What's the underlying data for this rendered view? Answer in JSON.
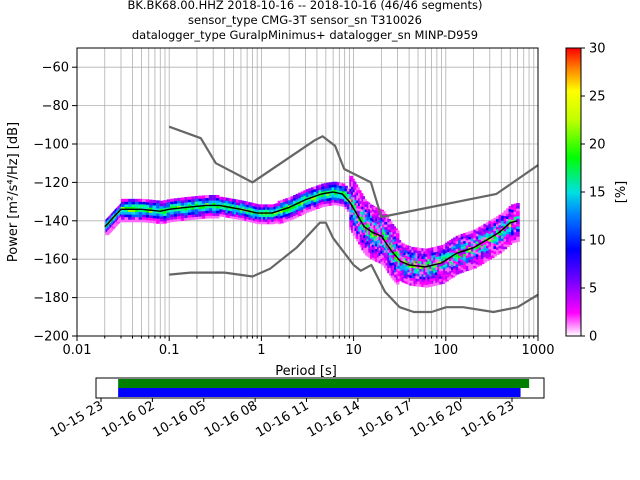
{
  "figure": {
    "title_lines": [
      "BK.BK68.00.HHZ   2018-10-16 -- 2018-10-16  (46/46 segments)",
      "sensor_type CMG-3T sensor_sn T310026",
      "datalogger_type GuralpMinimus+ datalogger_sn MINP-D959"
    ]
  },
  "chart_data": [
    {
      "type": "heatmap",
      "title": "BK.BK68.00.HHZ   2018-10-16 -- 2018-10-16  (46/46 segments)",
      "xlabel": "Period [s]",
      "ylabel": "Power [m²/s⁴/Hz] [dB]",
      "x_scale": "log",
      "xlim": [
        0.01,
        1000
      ],
      "ylim": [
        -200,
        -50
      ],
      "x_ticks": [
        0.01,
        0.1,
        1,
        10,
        100,
        1000
      ],
      "x_tick_labels": [
        "0.01",
        "0.1",
        "1",
        "10",
        "100",
        "1000"
      ],
      "y_ticks": [
        -60,
        -80,
        -100,
        -120,
        -140,
        -160,
        -180,
        -200
      ],
      "y_tick_labels": [
        "−60",
        "−80",
        "−100",
        "−120",
        "−140",
        "−160",
        "−180",
        "−200"
      ],
      "grid": true,
      "colorbar": {
        "label": "[%]",
        "range": [
          0,
          30
        ],
        "ticks": [
          0,
          5,
          10,
          15,
          20,
          25,
          30
        ],
        "tick_labels": [
          "0",
          "5",
          "10",
          "15",
          "20",
          "25",
          "30"
        ]
      },
      "series": [
        {
          "role": "noise-model-high",
          "color": "#666666",
          "points": [
            [
              0.1,
              -91
            ],
            [
              0.22,
              -97
            ],
            [
              0.32,
              -110
            ],
            [
              0.8,
              -120
            ],
            [
              3.8,
              -98
            ],
            [
              4.6,
              -96
            ],
            [
              6.3,
              -101
            ],
            [
              7.9,
              -113
            ],
            [
              15.4,
              -120
            ],
            [
              20,
              -138
            ],
            [
              354.8,
              -126
            ],
            [
              1000,
              -111
            ]
          ]
        },
        {
          "role": "noise-model-low",
          "color": "#666666",
          "points": [
            [
              0.1,
              -168
            ],
            [
              0.17,
              -167
            ],
            [
              0.4,
              -167
            ],
            [
              0.8,
              -169
            ],
            [
              1.24,
              -165
            ],
            [
              2.4,
              -154
            ],
            [
              4.3,
              -141
            ],
            [
              5,
              -141
            ],
            [
              6,
              -149
            ],
            [
              10,
              -163
            ],
            [
              12,
              -166
            ],
            [
              15.6,
              -163
            ],
            [
              21.9,
              -177
            ],
            [
              31.6,
              -185
            ],
            [
              45,
              -187.5
            ],
            [
              70,
              -187.5
            ],
            [
              101,
              -185
            ],
            [
              154,
              -185
            ],
            [
              328,
              -187.5
            ],
            [
              600,
              -185
            ],
            [
              1000,
              -178.5
            ]
          ]
        },
        {
          "role": "mean",
          "color": "#000000",
          "points": [
            [
              0.02,
              -143
            ],
            [
              0.022,
              -141
            ],
            [
              0.025,
              -138
            ],
            [
              0.03,
              -134
            ],
            [
              0.05,
              -134
            ],
            [
              0.08,
              -135
            ],
            [
              0.1,
              -134
            ],
            [
              0.15,
              -133
            ],
            [
              0.25,
              -132
            ],
            [
              0.35,
              -132
            ],
            [
              0.6,
              -134
            ],
            [
              0.9,
              -136
            ],
            [
              1.3,
              -136
            ],
            [
              2,
              -133
            ],
            [
              3,
              -129
            ],
            [
              4.5,
              -126
            ],
            [
              6,
              -125
            ],
            [
              7.5,
              -126
            ],
            [
              9,
              -130
            ],
            [
              11,
              -137
            ],
            [
              13,
              -143
            ],
            [
              16,
              -146
            ],
            [
              20,
              -148
            ],
            [
              26,
              -156
            ],
            [
              32,
              -161
            ],
            [
              40,
              -163
            ],
            [
              60,
              -164
            ],
            [
              90,
              -162
            ],
            [
              130,
              -157
            ],
            [
              200,
              -154
            ],
            [
              300,
              -149
            ],
            [
              380,
              -146
            ],
            [
              500,
              -141
            ],
            [
              600,
              -140
            ]
          ]
        }
      ],
      "density_bands": [
        {
          "x_range": [
            0.019,
            0.03
          ],
          "y_center": -142,
          "y_spread": 4
        },
        {
          "x_range": [
            0.03,
            0.35
          ],
          "y_center": -134,
          "y_spread": 6
        },
        {
          "x_range": [
            0.35,
            1.5
          ],
          "y_center": -135,
          "y_spread": 5
        },
        {
          "x_range": [
            1.5,
            9
          ],
          "y_center": -128,
          "y_spread": 6
        },
        {
          "x_range": [
            9,
            30
          ],
          "y_center": -148,
          "y_spread": 14
        },
        {
          "x_range": [
            30,
            120
          ],
          "y_center": -165,
          "y_spread": 10
        },
        {
          "x_range": [
            120,
            700
          ],
          "y_center": -150,
          "y_spread": 10
        }
      ]
    },
    {
      "type": "timeline",
      "x_tick_labels": [
        "10-15 23",
        "10-16 02",
        "10-16 05",
        "10-16 08",
        "10-16 11",
        "10-16 14",
        "10-16 17",
        "10-16 20",
        "10-16 23"
      ],
      "bars": [
        {
          "color": "#008000",
          "start": "10-16 00:00",
          "end": "10-17 00:00"
        },
        {
          "color": "#0000ff",
          "start": "10-16 00:00",
          "end": "10-16 23:30"
        }
      ]
    }
  ]
}
